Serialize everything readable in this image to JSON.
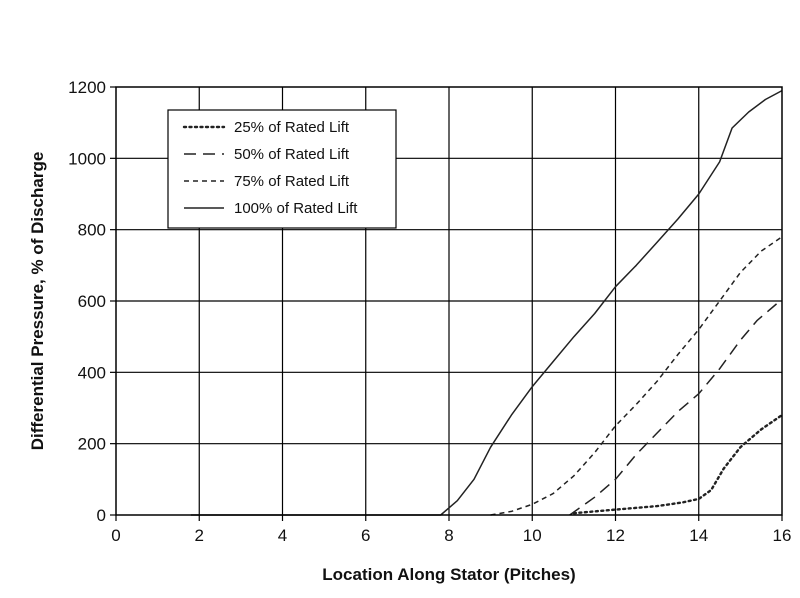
{
  "chart_data": {
    "type": "line",
    "xlabel": "Location Along Stator (Pitches)",
    "ylabel": "Differential Pressure, % of Discharge",
    "xlim": [
      0,
      16
    ],
    "ylim": [
      0,
      1200
    ],
    "xticks": [
      0,
      2,
      4,
      6,
      8,
      10,
      12,
      14,
      16
    ],
    "yticks": [
      0,
      200,
      400,
      600,
      800,
      1000,
      1200
    ],
    "grid": true,
    "legend_position": "top-left",
    "series": [
      {
        "name": "25% of Rated Lift",
        "style": "dotted",
        "color": "#222222",
        "x": [
          11.0,
          12.0,
          13.0,
          13.6,
          14.0,
          14.3,
          14.6,
          15.0,
          15.5,
          16.0
        ],
        "y": [
          5,
          15,
          25,
          35,
          45,
          70,
          130,
          190,
          240,
          280
        ]
      },
      {
        "name": "50% of Rated Lift",
        "style": "dashed",
        "color": "#222222",
        "x": [
          10.9,
          11.5,
          12.0,
          12.5,
          13.0,
          13.5,
          14.0,
          14.5,
          15.0,
          15.4,
          16.0
        ],
        "y": [
          0,
          50,
          100,
          170,
          230,
          290,
          340,
          410,
          490,
          545,
          605
        ]
      },
      {
        "name": "75% of Rated Lift",
        "style": "short-dashed",
        "color": "#222222",
        "x": [
          9.0,
          9.5,
          10.0,
          10.5,
          11.0,
          11.5,
          12.0,
          12.5,
          13.0,
          13.5,
          14.0,
          14.5,
          15.0,
          15.5,
          16.0
        ],
        "y": [
          0,
          10,
          30,
          60,
          110,
          175,
          250,
          310,
          375,
          450,
          520,
          600,
          680,
          740,
          780
        ]
      },
      {
        "name": "100% of Rated Lift",
        "style": "solid",
        "color": "#222222",
        "x": [
          1.8,
          7.8,
          8.2,
          8.6,
          9.0,
          9.5,
          10.0,
          10.5,
          11.0,
          11.5,
          12.0,
          12.5,
          13.0,
          13.5,
          14.0,
          14.5,
          14.8,
          15.2,
          15.6,
          16.0
        ],
        "y": [
          0,
          0,
          40,
          100,
          190,
          280,
          360,
          430,
          500,
          565,
          640,
          700,
          765,
          830,
          900,
          990,
          1085,
          1130,
          1165,
          1190
        ]
      }
    ]
  }
}
